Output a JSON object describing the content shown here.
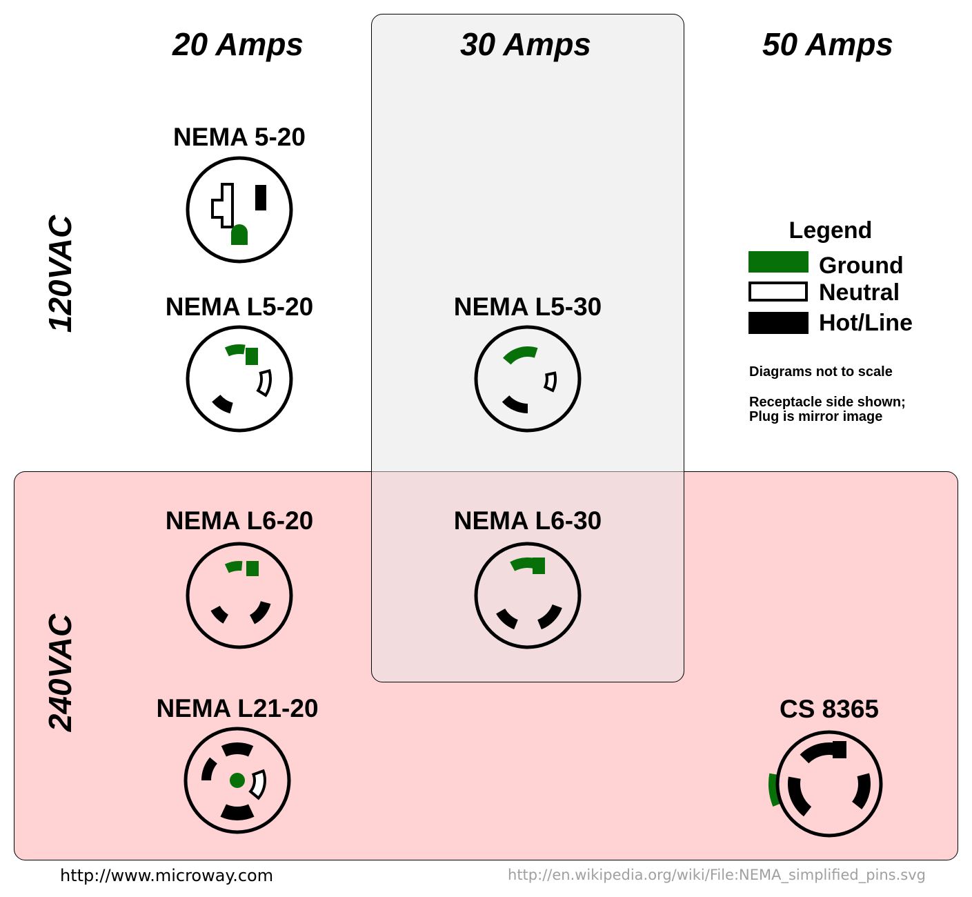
{
  "columns": [
    "20 Amps",
    "30 Amps",
    "50 Amps"
  ],
  "rows": [
    "120VAC",
    "240VAC"
  ],
  "receptacles": {
    "nema_5_20": "NEMA 5-20",
    "nema_l5_20": "NEMA L5-20",
    "nema_l5_30": "NEMA L5-30",
    "nema_l6_20": "NEMA L6-20",
    "nema_l6_30": "NEMA L6-30",
    "nema_l21_20": "NEMA L21-20",
    "cs_8365": "CS 8365"
  },
  "legend": {
    "title": "Legend",
    "items": [
      {
        "label": "Ground",
        "color": "#087008"
      },
      {
        "label": "Neutral",
        "color": "#ffffff"
      },
      {
        "label": "Hot/Line",
        "color": "#000000"
      }
    ],
    "note1": "Diagrams not to scale",
    "note2_line1": "Receptacle side shown;",
    "note2_line2": "Plug is mirror image"
  },
  "colors": {
    "ground": "#087008",
    "row_240_bg": "#ffd2d4",
    "col_30_bg": "#f3f3f3"
  },
  "footer": {
    "left_url": "http://www.microway.com",
    "right_url": "http://en.wikipedia.org/wiki/File:NEMA_simplified_pins.svg"
  }
}
